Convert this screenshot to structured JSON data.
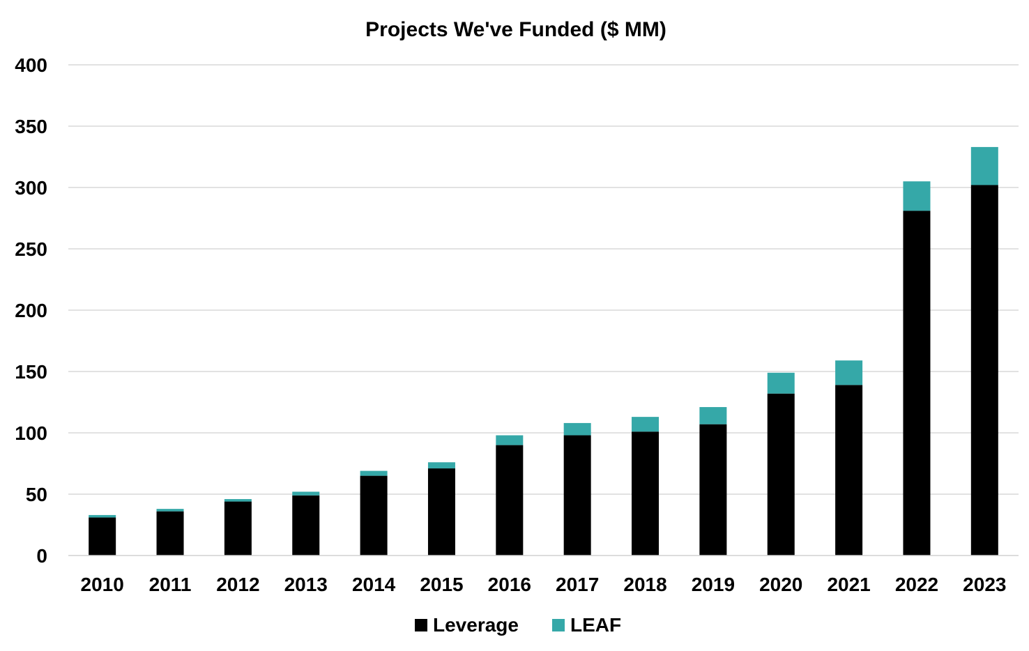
{
  "chart_data": {
    "type": "bar",
    "stacked": true,
    "title": "Projects We've Funded ($ MM)",
    "xlabel": "",
    "ylabel": "",
    "categories": [
      "2010",
      "2011",
      "2012",
      "2013",
      "2014",
      "2015",
      "2016",
      "2017",
      "2018",
      "2019",
      "2020",
      "2021",
      "2022",
      "2023"
    ],
    "series": [
      {
        "name": "Leverage",
        "color": "#000000",
        "values": [
          31,
          36,
          44,
          49,
          65,
          71,
          90,
          98,
          101,
          107,
          132,
          139,
          281,
          302
        ]
      },
      {
        "name": "LEAF",
        "color": "#35a8a8",
        "values": [
          2,
          2,
          2,
          3,
          4,
          5,
          8,
          10,
          12,
          14,
          17,
          20,
          24,
          31
        ]
      }
    ],
    "ylim": [
      0,
      400
    ],
    "yticks": [
      0,
      50,
      100,
      150,
      200,
      250,
      300,
      350,
      400
    ],
    "grid": true,
    "legend_position": "bottom"
  }
}
